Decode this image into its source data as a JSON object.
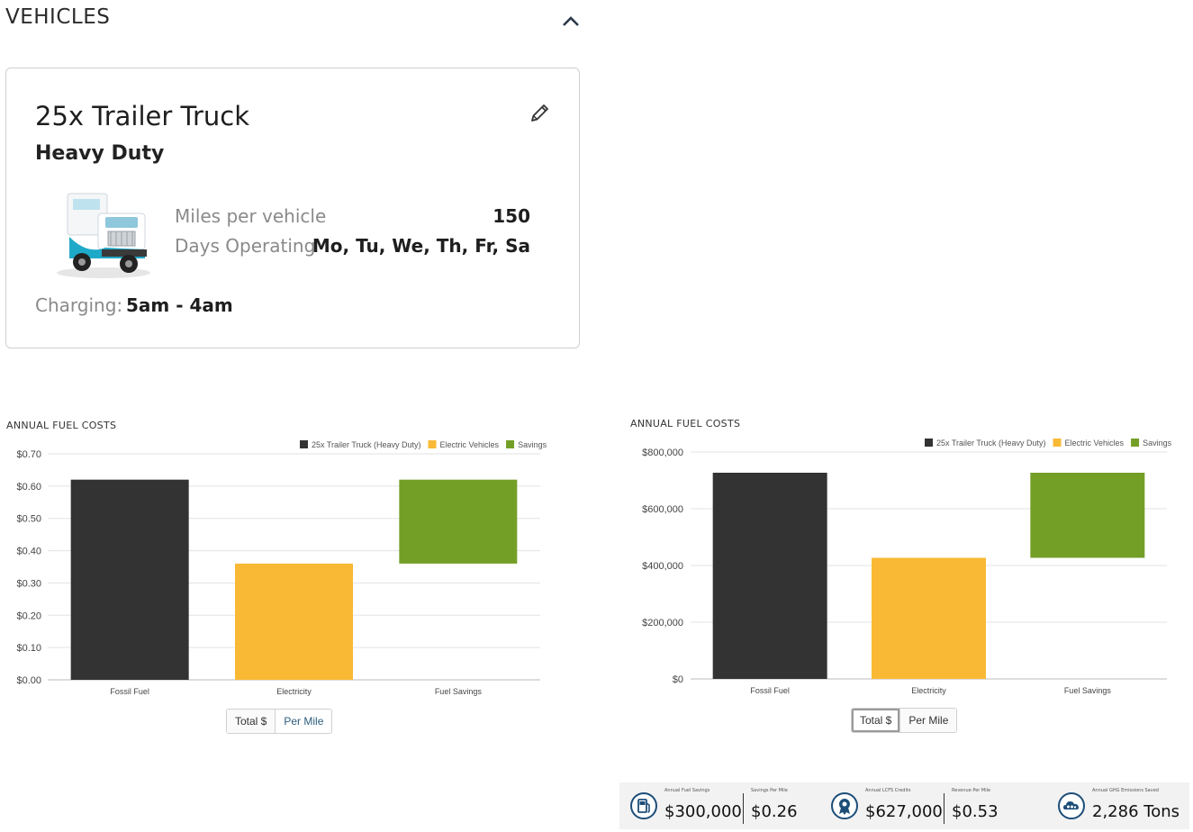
{
  "section": {
    "title": "VEHICLES"
  },
  "vehicle": {
    "name": "25x Trailer Truck",
    "class": "Heavy Duty",
    "miles_label": "Miles per vehicle",
    "miles_value": "150",
    "days_label": "Days Operating",
    "days_value": "Mo, Tu, We, Th, Fr, Sa",
    "charging_label": "Charging:",
    "charging_value": "5am - 4am"
  },
  "charts": {
    "left_title": "ANNUAL FUEL COSTS",
    "right_title": "ANNUAL FUEL COSTS"
  },
  "toggles": {
    "left": {
      "total_label": "Total $",
      "per_mile_label": "Per Mile",
      "selected": "Per Mile"
    },
    "right": {
      "total_label": "Total $",
      "per_mile_label": "Per Mile",
      "selected": "Total $"
    }
  },
  "colors": {
    "fossil": "#333333",
    "electric": "#F9B935",
    "savings": "#749F27"
  },
  "chart_data": [
    {
      "type": "bar",
      "title": "ANNUAL FUEL COSTS",
      "categories": [
        "Fossil Fuel",
        "Electricity",
        "Fuel Savings"
      ],
      "legend": [
        "25x Trailer Truck (Heavy Duty)",
        "Electric Vehicles",
        "Savings"
      ],
      "legend_position": "top-right",
      "ylim": [
        0,
        0.7
      ],
      "yticks": [
        0,
        0.1,
        0.2,
        0.3,
        0.4,
        0.5,
        0.6,
        0.7
      ],
      "ytick_labels": [
        "$0.00",
        "$0.10",
        "$0.20",
        "$0.30",
        "$0.40",
        "$0.50",
        "$0.60",
        "$0.70"
      ],
      "bars": [
        {
          "category": "Fossil Fuel",
          "series": "25x Trailer Truck (Heavy Duty)",
          "low": 0,
          "high": 0.62,
          "color": "#333333"
        },
        {
          "category": "Electricity",
          "series": "Electric Vehicles",
          "low": 0,
          "high": 0.36,
          "color": "#F9B935"
        },
        {
          "category": "Fuel Savings",
          "series": "Savings",
          "low": 0.36,
          "high": 0.62,
          "color": "#749F27"
        }
      ],
      "grid": true
    },
    {
      "type": "bar",
      "title": "ANNUAL FUEL COSTS",
      "categories": [
        "Fossil Fuel",
        "Electricity",
        "Fuel Savings"
      ],
      "legend": [
        "25x Trailer Truck (Heavy Duty)",
        "Electric Vehicles",
        "Savings"
      ],
      "legend_position": "top-right",
      "ylim": [
        0,
        800000
      ],
      "yticks": [
        0,
        200000,
        400000,
        600000,
        800000
      ],
      "ytick_labels": [
        "$0",
        "$200,000",
        "$400,000",
        "$600,000",
        "$800,000"
      ],
      "bars": [
        {
          "category": "Fossil Fuel",
          "series": "25x Trailer Truck (Heavy Duty)",
          "low": 0,
          "high": 727000,
          "color": "#333333"
        },
        {
          "category": "Electricity",
          "series": "Electric Vehicles",
          "low": 0,
          "high": 427000,
          "color": "#F9B935"
        },
        {
          "category": "Fuel Savings",
          "series": "Savings",
          "low": 427000,
          "high": 727000,
          "color": "#749F27"
        }
      ],
      "grid": true
    }
  ],
  "summary": [
    {
      "caption": "Annual Fuel Savings",
      "value": "$300,000",
      "icon": "fuel-pump-icon"
    },
    {
      "caption": "Savings Per Mile",
      "value": "$0.26",
      "icon": ""
    },
    {
      "caption": "Annual LCFS Credits",
      "value": "$627,000",
      "icon": "award-badge-icon"
    },
    {
      "caption": "Revenue Per Mile",
      "value": "$0.53",
      "icon": ""
    },
    {
      "caption": "Annual GHG Emissions Saved",
      "value": "2,286 Tons",
      "icon": "cloud-co2-icon"
    }
  ]
}
